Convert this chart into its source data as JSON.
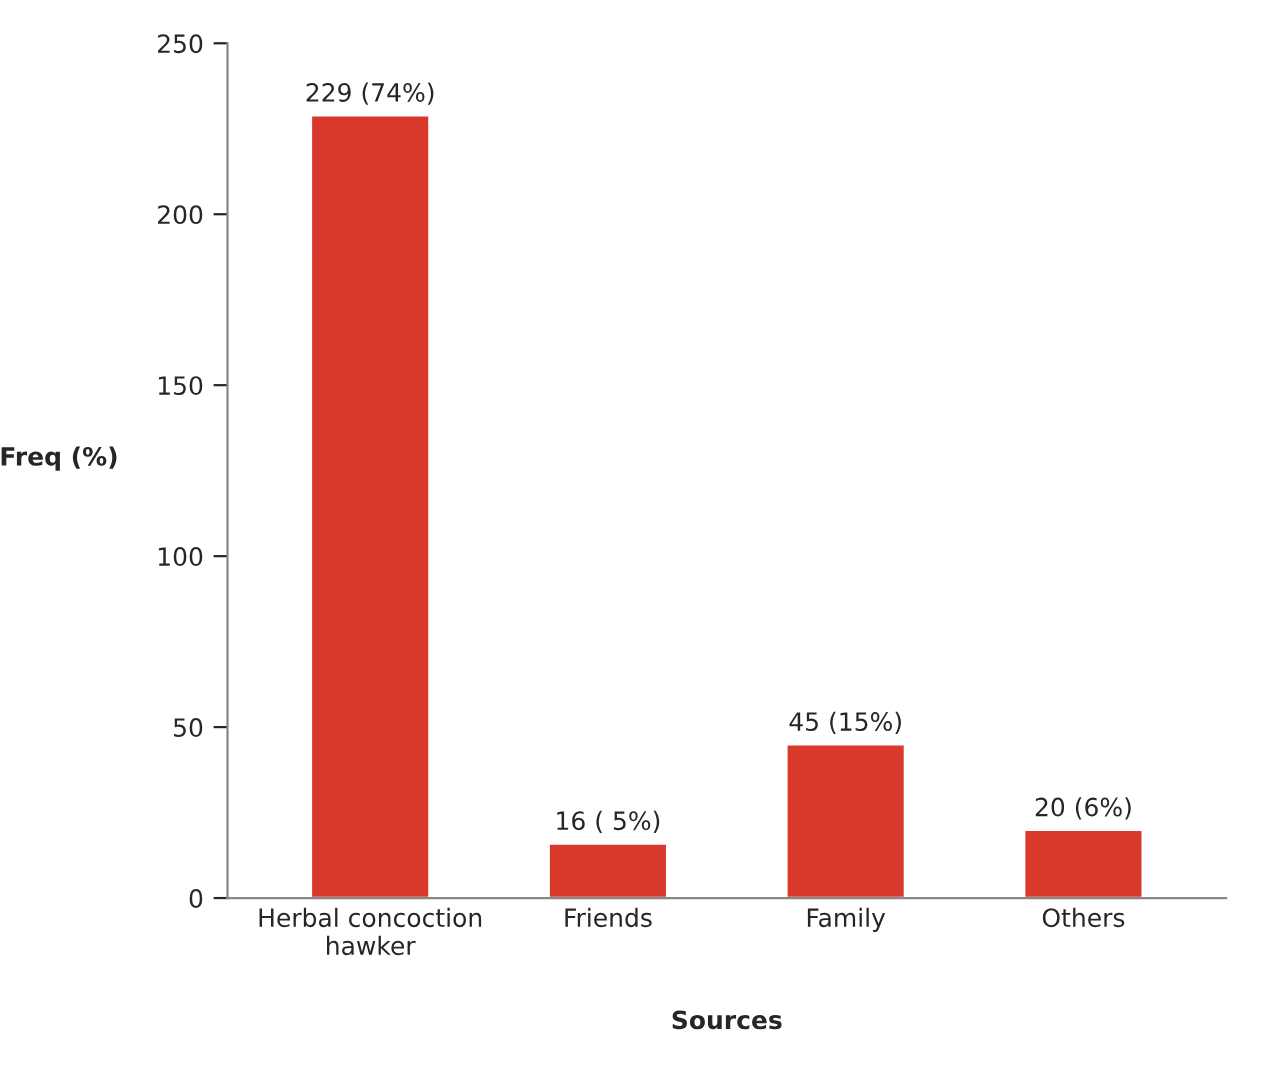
{
  "chart_data": {
    "type": "bar",
    "xlabel": "Sources",
    "ylabel": "Freq (%)",
    "categories": [
      "Herbal concoction\nhawker",
      "Friends",
      "Family",
      "Others"
    ],
    "values": [
      229,
      16,
      45,
      20
    ],
    "value_labels": [
      "229 (74%)",
      "16 ( 5%)",
      "45 (15%)",
      "20 (6%)"
    ],
    "color": "#d9392a",
    "ylim": [
      0,
      250
    ],
    "yticks": [
      0,
      50,
      100,
      150,
      200,
      250
    ],
    "grid": false,
    "legend": false
  }
}
